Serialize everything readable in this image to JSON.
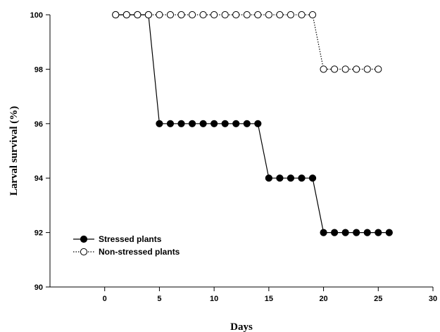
{
  "chart_data": {
    "type": "line",
    "title": "",
    "xlabel": "Days",
    "ylabel": "Larval survival (%)",
    "xlim": [
      -5,
      30
    ],
    "ylim": [
      90,
      100
    ],
    "xticks": [
      0,
      5,
      10,
      15,
      20,
      25,
      30
    ],
    "yticks": [
      90,
      92,
      94,
      96,
      98,
      100
    ],
    "grid": false,
    "legend_position": "bottom-left",
    "series": [
      {
        "name": "Stressed plants",
        "marker": "filled-circle",
        "line_style": "solid",
        "color": "#000000",
        "x": [
          1,
          2,
          3,
          4,
          5,
          6,
          7,
          8,
          9,
          10,
          11,
          12,
          13,
          14,
          15,
          16,
          17,
          18,
          19,
          20,
          21,
          22,
          23,
          24,
          25,
          26
        ],
        "y": [
          100,
          100,
          100,
          100,
          96,
          96,
          96,
          96,
          96,
          96,
          96,
          96,
          96,
          96,
          94,
          94,
          94,
          94,
          94,
          92,
          92,
          92,
          92,
          92,
          92,
          92
        ]
      },
      {
        "name": "Non-stressed plants",
        "marker": "open-circle",
        "line_style": "dotted",
        "color": "#000000",
        "x": [
          1,
          2,
          3,
          4,
          5,
          6,
          7,
          8,
          9,
          10,
          11,
          12,
          13,
          14,
          15,
          16,
          17,
          18,
          19,
          20,
          21,
          22,
          23,
          24,
          25
        ],
        "y": [
          100,
          100,
          100,
          100,
          100,
          100,
          100,
          100,
          100,
          100,
          100,
          100,
          100,
          100,
          100,
          100,
          100,
          100,
          100,
          98,
          98,
          98,
          98,
          98,
          98
        ]
      }
    ]
  }
}
